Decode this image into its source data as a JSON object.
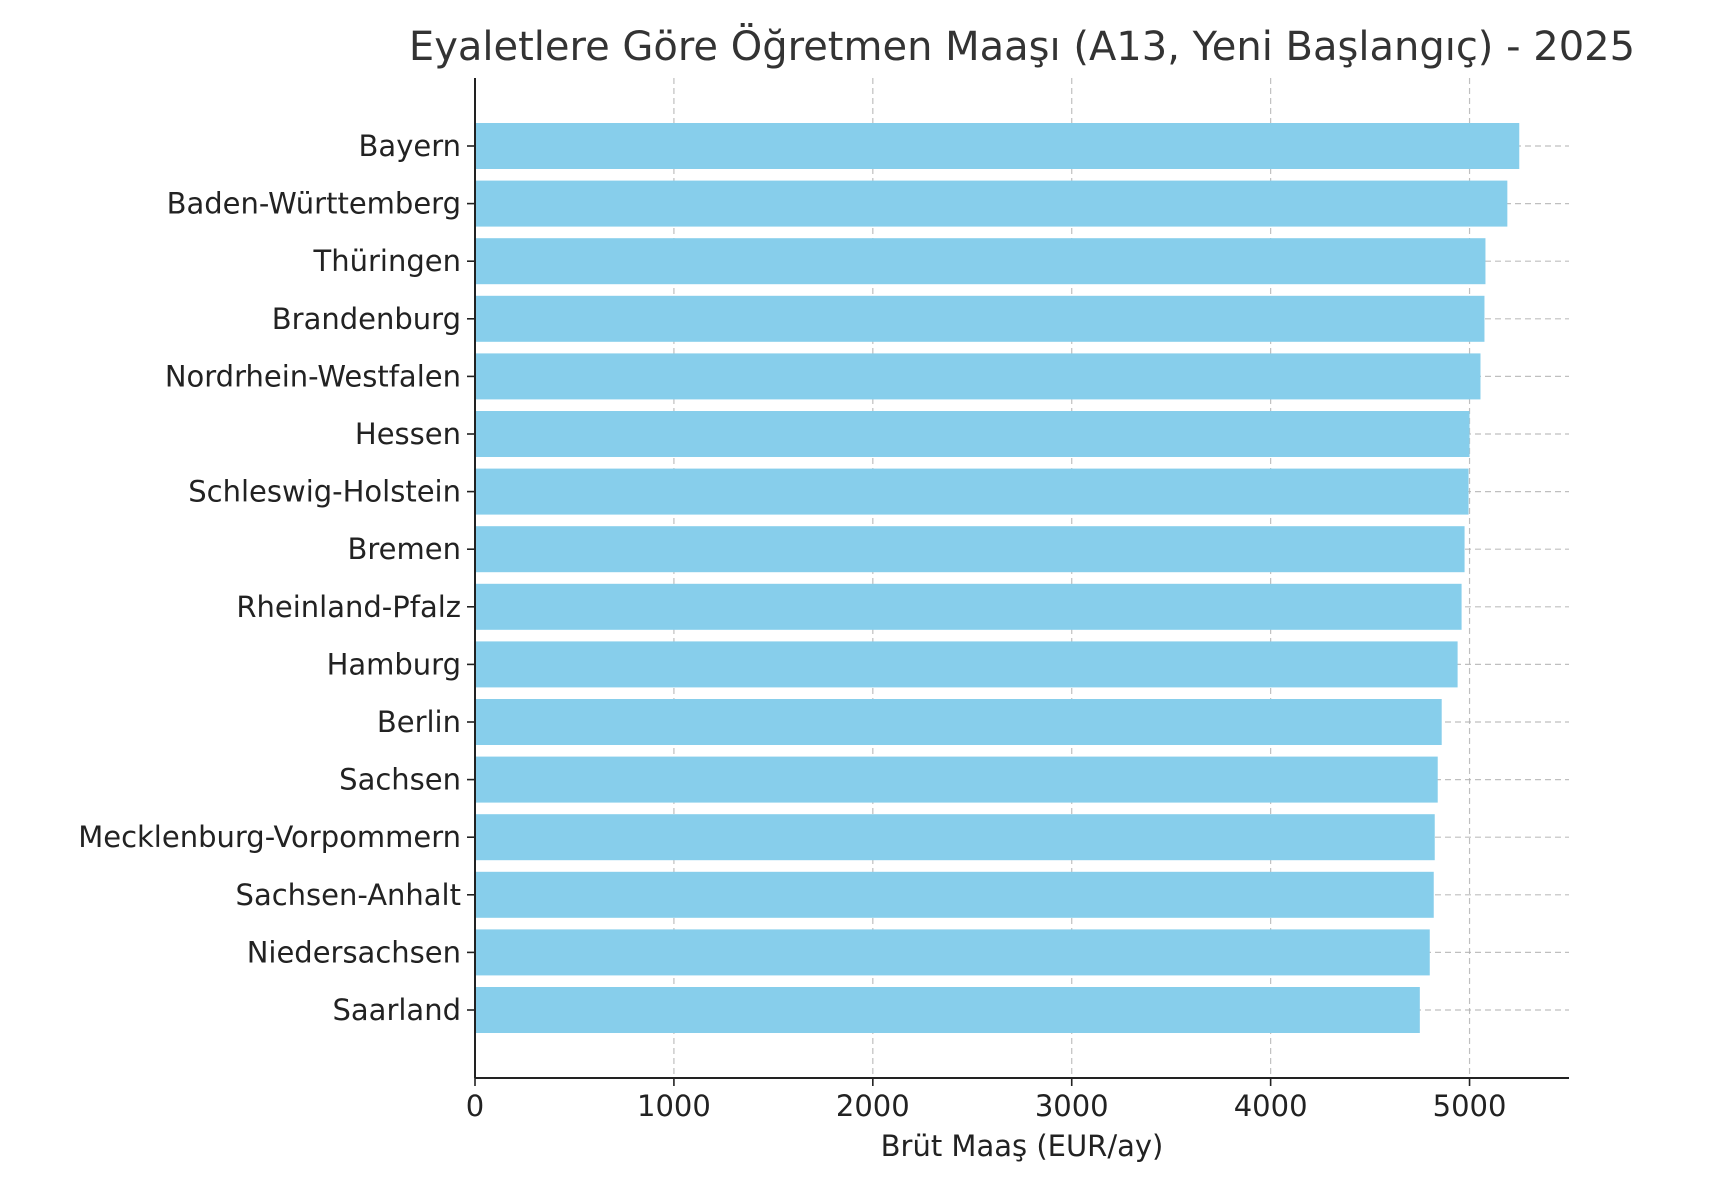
{
  "chart_data": {
    "type": "bar",
    "orientation": "horizontal",
    "title": "Eyaletlere Göre Öğretmen Maaşı (A13, Yeni Başlangıç) - 2025",
    "xlabel": "Brüt Maaş (EUR/ay)",
    "ylabel": "",
    "xlim": [
      0,
      5500
    ],
    "xticks": [
      0,
      1000,
      2000,
      3000,
      4000,
      5000
    ],
    "grid": true,
    "bar_color": "#87CEEB",
    "categories": [
      "Bayern",
      "Baden-Württemberg",
      "Thüringen",
      "Brandenburg",
      "Nordrhein-Westfalen",
      "Hessen",
      "Schleswig-Holstein",
      "Bremen",
      "Rheinland-Pfalz",
      "Hamburg",
      "Berlin",
      "Sachsen",
      "Mecklenburg-Vorpommern",
      "Sachsen-Anhalt",
      "Niedersachsen",
      "Saarland"
    ],
    "values": [
      5250,
      5190,
      5080,
      5075,
      5055,
      5000,
      4995,
      4975,
      4960,
      4940,
      4860,
      4840,
      4825,
      4820,
      4800,
      4750
    ]
  }
}
